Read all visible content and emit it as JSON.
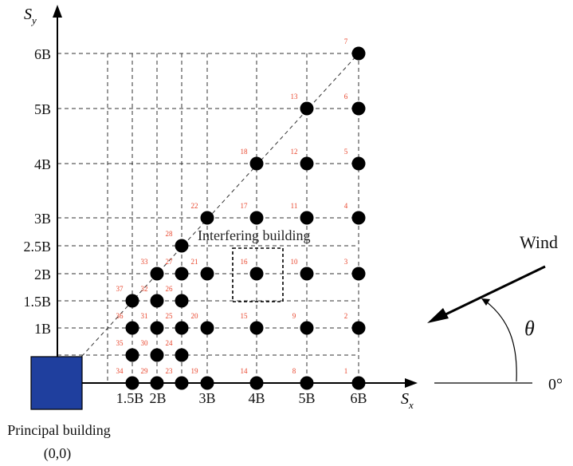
{
  "axes": {
    "y_label_main": "S",
    "y_label_sub": "y",
    "x_label_main": "S",
    "x_label_sub": "x",
    "y_ticks": [
      "6B",
      "5B",
      "4B",
      "3B",
      "2.5B",
      "2B",
      "1.5B",
      "1B"
    ],
    "x_ticks": [
      "1.5B",
      "2B",
      "3B",
      "4B",
      "5B",
      "6B"
    ]
  },
  "labels": {
    "interfering_building": "Interfering building",
    "principal_building": "Principal building",
    "principal_origin": "(0,0)",
    "wind": "Wind",
    "theta": "θ",
    "zero_deg": "0°"
  },
  "colors": {
    "principal_fill": "#1f3f9e",
    "number_color": "#e8452c"
  },
  "points": [
    {
      "n": "1",
      "x": 6,
      "y": 0
    },
    {
      "n": "2",
      "x": 6,
      "y": 1
    },
    {
      "n": "3",
      "x": 6,
      "y": 2
    },
    {
      "n": "4",
      "x": 6,
      "y": 3
    },
    {
      "n": "5",
      "x": 6,
      "y": 4
    },
    {
      "n": "6",
      "x": 6,
      "y": 5
    },
    {
      "n": "7",
      "x": 6,
      "y": 6
    },
    {
      "n": "8",
      "x": 5,
      "y": 0
    },
    {
      "n": "9",
      "x": 5,
      "y": 1
    },
    {
      "n": "10",
      "x": 5,
      "y": 2
    },
    {
      "n": "11",
      "x": 5,
      "y": 3
    },
    {
      "n": "12",
      "x": 5,
      "y": 4
    },
    {
      "n": "13",
      "x": 5,
      "y": 5
    },
    {
      "n": "14",
      "x": 4,
      "y": 0
    },
    {
      "n": "15",
      "x": 4,
      "y": 1
    },
    {
      "n": "16",
      "x": 4,
      "y": 2
    },
    {
      "n": "17",
      "x": 4,
      "y": 3
    },
    {
      "n": "18",
      "x": 4,
      "y": 4
    },
    {
      "n": "19",
      "x": 3,
      "y": 0
    },
    {
      "n": "20",
      "x": 3,
      "y": 1
    },
    {
      "n": "21",
      "x": 3,
      "y": 2
    },
    {
      "n": "22",
      "x": 3,
      "y": 3
    },
    {
      "n": "23",
      "x": 2.5,
      "y": 0
    },
    {
      "n": "24",
      "x": 2.5,
      "y": 0.5
    },
    {
      "n": "25",
      "x": 2.5,
      "y": 1
    },
    {
      "n": "26",
      "x": 2.5,
      "y": 1.5
    },
    {
      "n": "27",
      "x": 2.5,
      "y": 2
    },
    {
      "n": "28",
      "x": 2.5,
      "y": 2.5
    },
    {
      "n": "29",
      "x": 2,
      "y": 0
    },
    {
      "n": "30",
      "x": 2,
      "y": 0.5
    },
    {
      "n": "31",
      "x": 2,
      "y": 1
    },
    {
      "n": "32",
      "x": 2,
      "y": 1.5
    },
    {
      "n": "33",
      "x": 2,
      "y": 2
    },
    {
      "n": "34",
      "x": 1.5,
      "y": 0
    },
    {
      "n": "35",
      "x": 1.5,
      "y": 0.5
    },
    {
      "n": "36",
      "x": 1.5,
      "y": 1
    },
    {
      "n": "37",
      "x": 1.5,
      "y": 1.5
    }
  ]
}
